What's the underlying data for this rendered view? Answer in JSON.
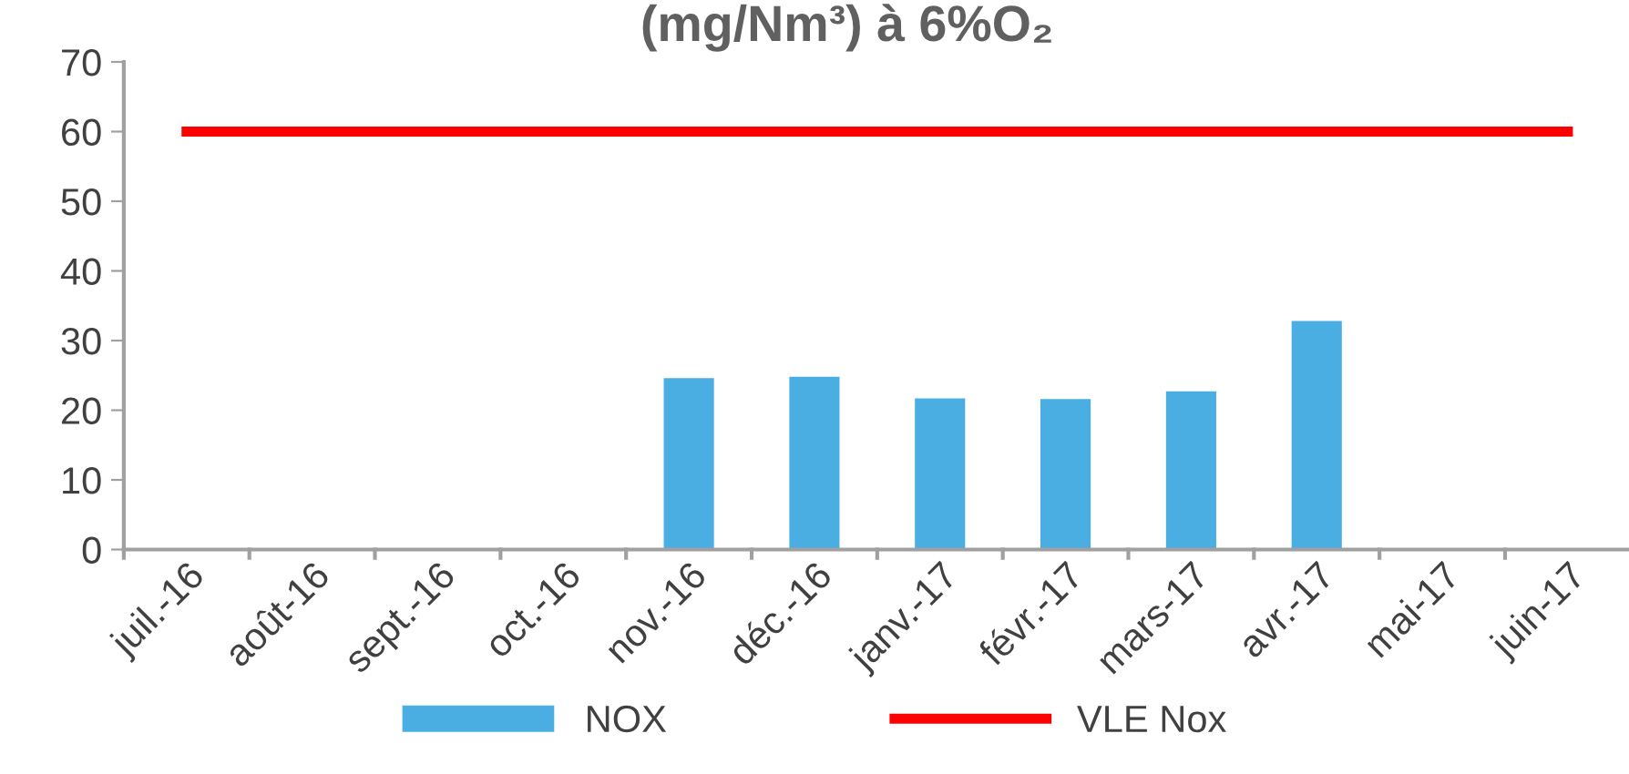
{
  "chart_data": {
    "type": "bar",
    "title": "(mg/Nm³) à 6%O₂",
    "categories": [
      "juil.-16",
      "août-16",
      "sept.-16",
      "oct.-16",
      "nov.-16",
      "déc.-16",
      "janv.-17",
      "févr.-17",
      "mars-17",
      "avr.-17",
      "mai-17",
      "juin-17"
    ],
    "series": [
      {
        "name": "NOX",
        "color": "#4aaee2",
        "values": [
          null,
          null,
          null,
          null,
          24.6,
          24.8,
          21.7,
          21.6,
          22.7,
          32.8,
          null,
          null
        ]
      },
      {
        "name": "VLE Nox",
        "type": "line",
        "color": "#ff0000",
        "values": [
          60,
          60,
          60,
          60,
          60,
          60,
          60,
          60,
          60,
          60,
          60,
          60
        ]
      }
    ],
    "ylim": [
      0,
      70
    ],
    "yticks": [
      0,
      10,
      20,
      30,
      40,
      50,
      60,
      70
    ],
    "grid": false,
    "legend": "bottom"
  }
}
